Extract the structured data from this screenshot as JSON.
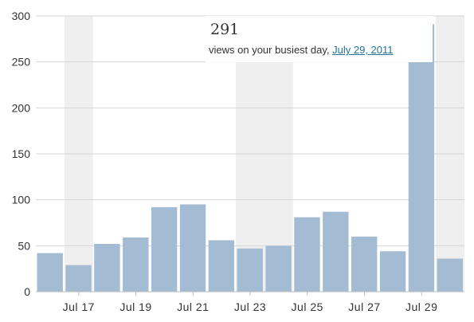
{
  "chart_data": {
    "type": "bar",
    "y_ticks": [
      "0",
      "50",
      "100",
      "150",
      "200",
      "250",
      "300"
    ],
    "ylim": [
      0,
      300
    ],
    "x_tick_labels": [
      "Jul 17",
      "Jul 19",
      "Jul 21",
      "Jul 23",
      "Jul 25",
      "Jul 27",
      "Jul 29"
    ],
    "values": [
      42,
      29,
      52,
      59,
      92,
      95,
      56,
      47,
      50,
      81,
      87,
      60,
      44,
      291,
      36
    ],
    "weekend_shading": [
      [
        1,
        1
      ],
      [
        7,
        8
      ],
      [
        14,
        14
      ]
    ],
    "bar_color": "#a3bbd3",
    "shade_color": "#efefef",
    "grid": true
  },
  "peak": {
    "value": "291",
    "caption": "views on your busiest day,",
    "date": "July 29, 2011"
  }
}
